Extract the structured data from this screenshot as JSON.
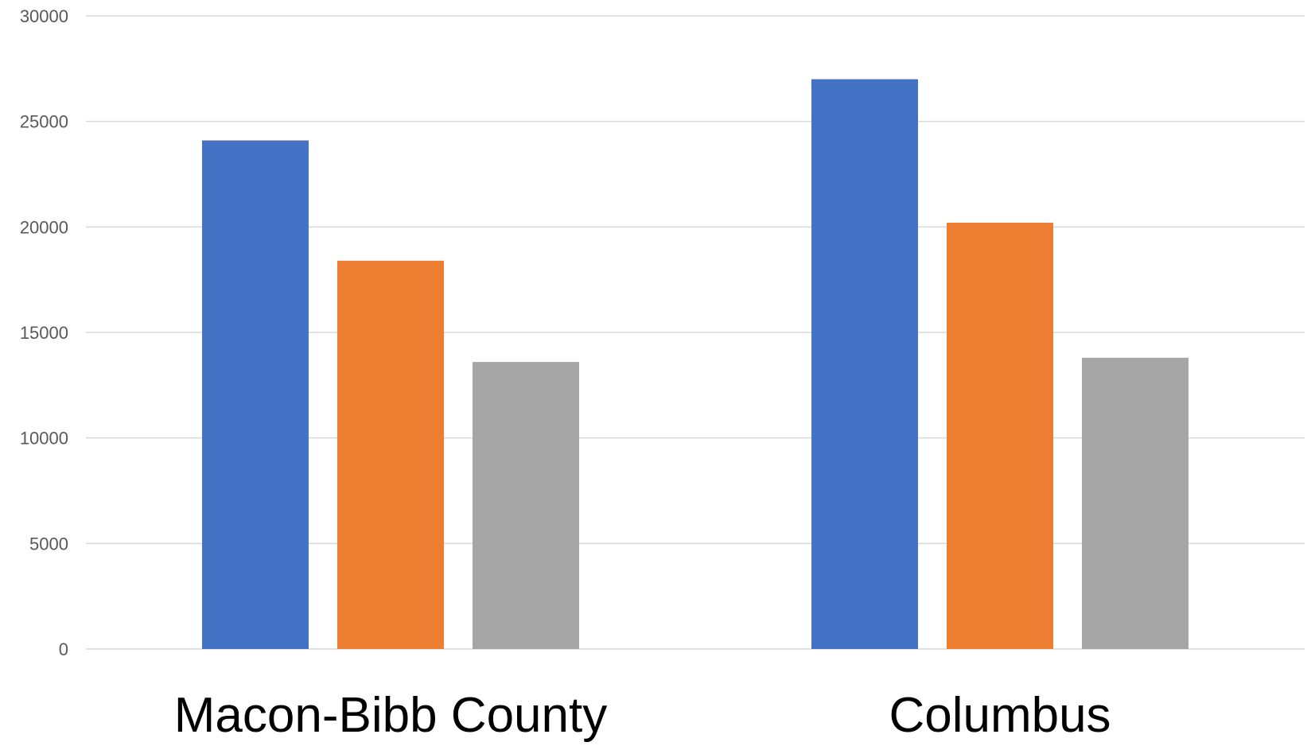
{
  "chart_data": {
    "type": "bar",
    "title": "",
    "xlabel": "",
    "ylabel": "",
    "categories": [
      "Macon-Bibb County",
      "Columbus"
    ],
    "series": [
      {
        "values": [
          24100,
          27000
        ],
        "color": "#4472C4"
      },
      {
        "values": [
          18400,
          20200
        ],
        "color": "#ED7D31"
      },
      {
        "values": [
          13600,
          13800
        ],
        "color": "#A5A5A5"
      }
    ],
    "ylim": [
      0,
      30000
    ],
    "yticks": [
      "0",
      "5000",
      "10000",
      "15000",
      "20000",
      "25000",
      "30000"
    ],
    "grid": true,
    "legend": "none"
  },
  "colors": {
    "gridline": "#d9d9d9",
    "tick_text": "#595959",
    "category_text": "#000000"
  }
}
